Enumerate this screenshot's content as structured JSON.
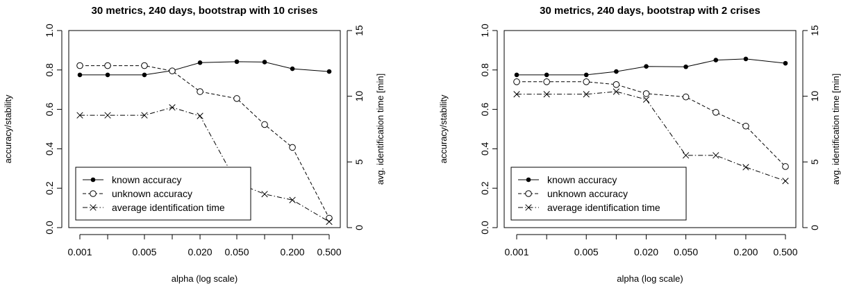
{
  "chart_data": [
    {
      "type": "line",
      "title": "30 metrics, 240 days, bootstrap with 10 crises",
      "xlabel": "alpha (log scale)",
      "ylabel": "accuracy/stability",
      "y2label": "avg. identification time [min]",
      "x_scale": "log",
      "x": [
        0.001,
        0.002,
        0.005,
        0.01,
        0.02,
        0.05,
        0.1,
        0.2,
        0.5
      ],
      "x_tick_labels": [
        "0.001",
        "0.005",
        "0.020",
        "0.050",
        "0.200",
        "0.500"
      ],
      "ylim": [
        0,
        1
      ],
      "y_ticks": [
        "0.0",
        "0.2",
        "0.4",
        "0.6",
        "0.8",
        "1.0"
      ],
      "y2lim": [
        0,
        15
      ],
      "y2_ticks": [
        "0",
        "5",
        "10",
        "15"
      ],
      "legend_position": "bottom-left",
      "series": [
        {
          "name": "known accuracy",
          "axis": "left",
          "line": "solid",
          "marker": "filled-circle",
          "values": [
            0.775,
            0.775,
            0.775,
            0.797,
            0.837,
            0.842,
            0.84,
            0.806,
            0.792
          ]
        },
        {
          "name": "unknown accuracy",
          "axis": "left",
          "line": "dashed",
          "marker": "open-circle",
          "values": [
            0.822,
            0.822,
            0.822,
            0.795,
            0.69,
            0.655,
            0.523,
            0.407,
            0.048
          ]
        },
        {
          "name": "average identification time",
          "axis": "right",
          "line": "dotdash",
          "marker": "cross",
          "values": [
            8.55,
            8.55,
            8.55,
            9.15,
            8.5,
            3.4,
            2.55,
            2.1,
            0.45
          ]
        }
      ]
    },
    {
      "type": "line",
      "title": "30 metrics, 240 days, bootstrap with 2 crises",
      "xlabel": "alpha (log scale)",
      "ylabel": "accuracy/stability",
      "y2label": "avg. identification time [min]",
      "x_scale": "log",
      "x": [
        0.001,
        0.002,
        0.005,
        0.01,
        0.02,
        0.05,
        0.1,
        0.2,
        0.5
      ],
      "x_tick_labels": [
        "0.001",
        "0.005",
        "0.020",
        "0.050",
        "0.200",
        "0.500"
      ],
      "ylim": [
        0,
        1
      ],
      "y_ticks": [
        "0.0",
        "0.2",
        "0.4",
        "0.6",
        "0.8",
        "1.0"
      ],
      "y2lim": [
        0,
        15
      ],
      "y2_ticks": [
        "0",
        "5",
        "10",
        "15"
      ],
      "legend_position": "bottom-left",
      "series": [
        {
          "name": "known accuracy",
          "axis": "left",
          "line": "solid",
          "marker": "filled-circle",
          "values": [
            0.775,
            0.775,
            0.775,
            0.792,
            0.818,
            0.816,
            0.85,
            0.856,
            0.834
          ]
        },
        {
          "name": "unknown accuracy",
          "axis": "left",
          "line": "dashed",
          "marker": "open-circle",
          "values": [
            0.74,
            0.74,
            0.74,
            0.726,
            0.68,
            0.663,
            0.585,
            0.515,
            0.31
          ]
        },
        {
          "name": "average identification time",
          "axis": "right",
          "line": "dotdash",
          "marker": "cross",
          "values": [
            10.15,
            10.15,
            10.15,
            10.35,
            9.75,
            5.5,
            5.5,
            4.6,
            3.55
          ]
        }
      ]
    }
  ]
}
